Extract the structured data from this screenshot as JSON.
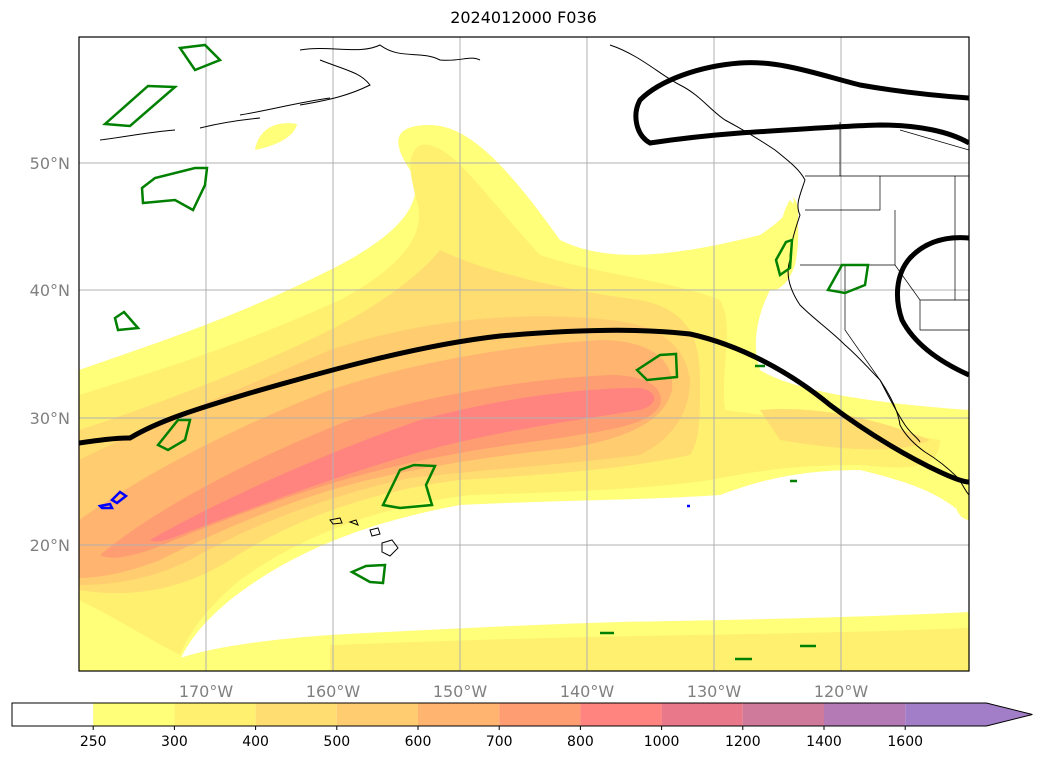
{
  "title": "2024012000 F036",
  "map": {
    "lon_range": [
      -180,
      -110
    ],
    "lat_range": [
      10,
      60
    ],
    "lat_labels": [
      "20°N",
      "30°N",
      "40°N",
      "50°N"
    ],
    "lon_labels": [
      "170°W",
      "160°W",
      "150°W",
      "140°W",
      "130°W",
      "120°W"
    ]
  },
  "colorbar": {
    "ticks": [
      "250",
      "300",
      "400",
      "500",
      "600",
      "700",
      "800",
      "1000",
      "1200",
      "1400",
      "1600"
    ],
    "colors": [
      "#ffffff",
      "#ffff7a",
      "#fff070",
      "#ffdd70",
      "#ffcd70",
      "#ffb570",
      "#ff9d72",
      "#ff8480",
      "#e8788a",
      "#cf7a9a",
      "#b47ab5",
      "#a37ec8"
    ],
    "extend": "max"
  },
  "legend_colors": {
    "contour_line": "#000000",
    "green_outline": "#008000",
    "blue_outline": "#0000ff"
  }
}
